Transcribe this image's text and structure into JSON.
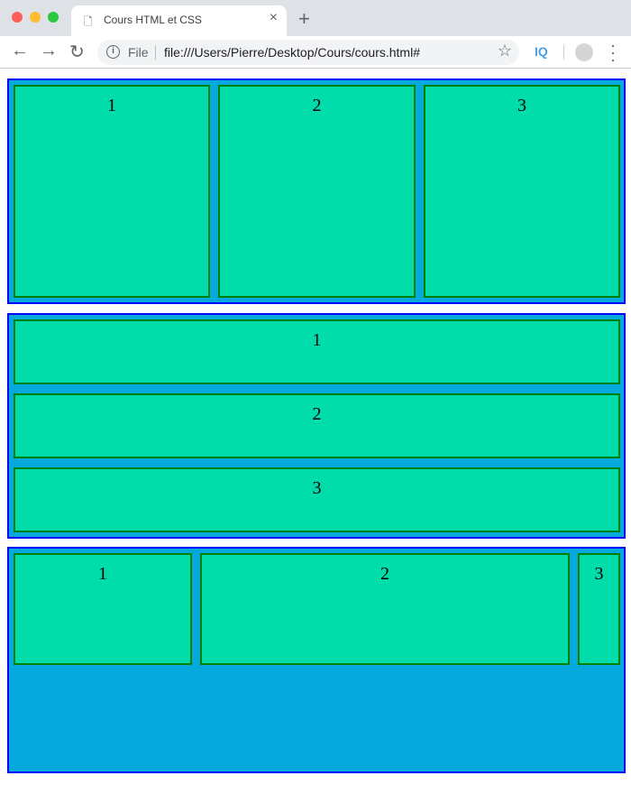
{
  "browser": {
    "tab_title": "Cours HTML et CSS",
    "url_scheme_label": "File",
    "url": "file:///Users/Pierre/Desktop/Cours/cours.html#",
    "extension_label": "IQ"
  },
  "colors": {
    "container_bg": "#05a9dc",
    "container_border": "#0000ff",
    "item_bg": "#00dcaa",
    "item_border": "#008000"
  },
  "containers": [
    {
      "items": [
        "1",
        "2",
        "3"
      ]
    },
    {
      "items": [
        "1",
        "2",
        "3"
      ]
    },
    {
      "items": [
        "1",
        "2",
        "3"
      ]
    }
  ]
}
